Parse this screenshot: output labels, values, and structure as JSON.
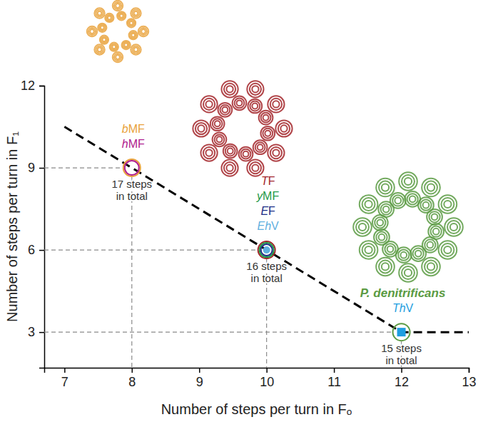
{
  "chart_data": {
    "type": "scatter",
    "xlabel": "Number of steps per turn in Fₒ",
    "ylabel": "Number of steps per turn in F₁",
    "xlim": [
      6.7,
      13
    ],
    "ylim": [
      1.7,
      12
    ],
    "xticks": [
      7,
      8,
      9,
      10,
      11,
      12,
      13
    ],
    "yticks": [
      3,
      6,
      9,
      12
    ],
    "series": [
      {
        "name": "bMF",
        "color": "#e9a23b",
        "x": [
          8
        ],
        "values": [
          9
        ],
        "marker": "circle"
      },
      {
        "name": "hMF",
        "color": "#b0208e",
        "x": [
          8
        ],
        "values": [
          9
        ],
        "marker": "circle"
      },
      {
        "name": "TF",
        "color": "#a3262a",
        "x": [
          10
        ],
        "values": [
          6
        ],
        "marker": "circle"
      },
      {
        "name": "yMF",
        "color": "#1f9a48",
        "x": [
          10
        ],
        "values": [
          6
        ],
        "marker": "circle"
      },
      {
        "name": "EF",
        "color": "#1c2d86",
        "x": [
          10
        ],
        "values": [
          6
        ],
        "marker": "circle"
      },
      {
        "name": "EhV",
        "color": "#5fb0e0",
        "x": [
          10
        ],
        "values": [
          6
        ],
        "marker": "dot"
      },
      {
        "name": "P. denitrificans",
        "color": "#5b9b43",
        "x": [
          12
        ],
        "values": [
          3
        ],
        "marker": "circle"
      },
      {
        "name": "ThV",
        "color": "#1f9ee0",
        "x": [
          12
        ],
        "values": [
          3
        ],
        "marker": "square"
      },
      {
        "type": "line",
        "line_style": "dashed",
        "color": "#000000",
        "x": [
          7,
          12,
          13
        ],
        "values": [
          10.5,
          3,
          3
        ]
      }
    ],
    "annotations": [
      {
        "text": "17 steps in total",
        "x": 8,
        "y": 9
      },
      {
        "text": "16 steps in total",
        "x": 10,
        "y": 6
      },
      {
        "text": "15 steps in total",
        "x": 12,
        "y": 3
      }
    ]
  }
}
